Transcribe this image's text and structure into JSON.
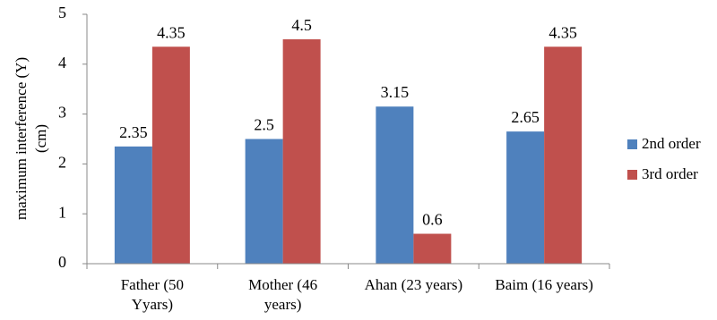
{
  "chart_data": {
    "type": "bar",
    "categories": [
      [
        "Father (50",
        "Yyars)"
      ],
      [
        "Mother (46",
        "years)"
      ],
      [
        "Ahan (23 years)"
      ],
      [
        "Baim (16 years)"
      ]
    ],
    "series": [
      {
        "name": "2nd order",
        "color": "#4f81bd",
        "values": [
          2.35,
          2.5,
          3.15,
          2.65
        ],
        "labels": [
          "2.35",
          "2.5",
          "3.15",
          "2.65"
        ]
      },
      {
        "name": "3rd order",
        "color": "#c0504d",
        "values": [
          4.35,
          4.5,
          0.6,
          4.35
        ],
        "labels": [
          "4.35",
          "4.5",
          "0.6",
          "4.35"
        ]
      }
    ],
    "ylabel_lines": [
      "maximum interference (Y)",
      "(cm)"
    ],
    "xlabel": "",
    "ylim": [
      0,
      5
    ],
    "yticks": [
      0,
      1,
      2,
      3,
      4,
      5
    ],
    "grid": false,
    "legend_position": "right"
  }
}
